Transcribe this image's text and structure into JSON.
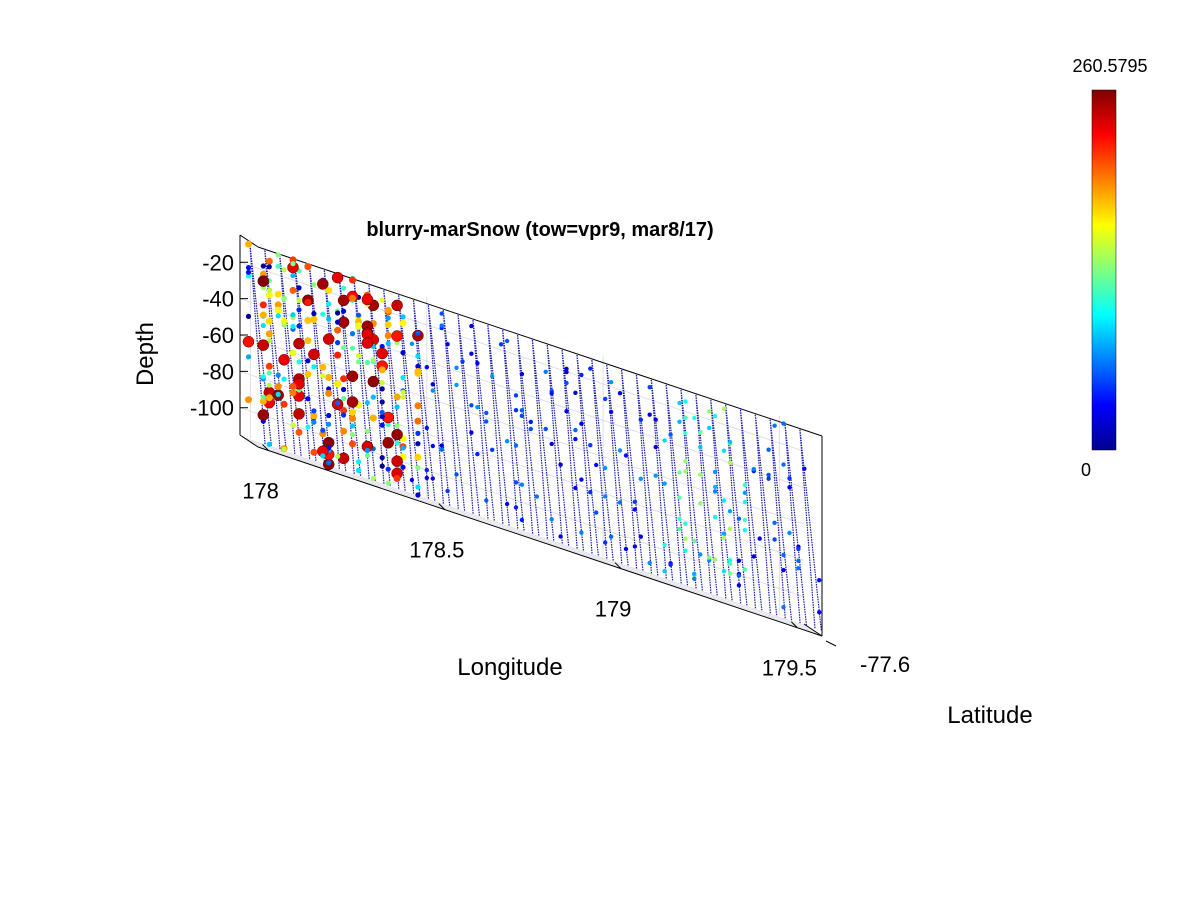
{
  "chart_data": {
    "type": "scatter",
    "projection": "3d",
    "title": "blurry-marSnow  (tow=vpr9, mar8/17)",
    "xlabel": "Longitude",
    "ylabel": "Latitude",
    "zlabel": "Depth",
    "x_ticks": [
      "178",
      "178.5",
      "179",
      "179.5"
    ],
    "y_ticks": [
      "-77.6"
    ],
    "z_ticks": [
      "-20",
      "-40",
      "-60",
      "-80",
      "-100"
    ],
    "xlim": [
      177.97,
      179.57
    ],
    "zlim": [
      -115,
      -5
    ],
    "colorscale": "jet",
    "colorbar": {
      "min": "0",
      "max": "260.5795",
      "min_value": 0,
      "max_value": 260.5795
    },
    "grid": true,
    "profiles": {
      "count": 38,
      "lon_start": 177.99,
      "lon_end": 179.55,
      "depth_top": -8,
      "depth_bottom": -112,
      "hot_region_lon_max": 178.45,
      "secondary_hot_lon_range": [
        179.15,
        179.35
      ]
    }
  }
}
